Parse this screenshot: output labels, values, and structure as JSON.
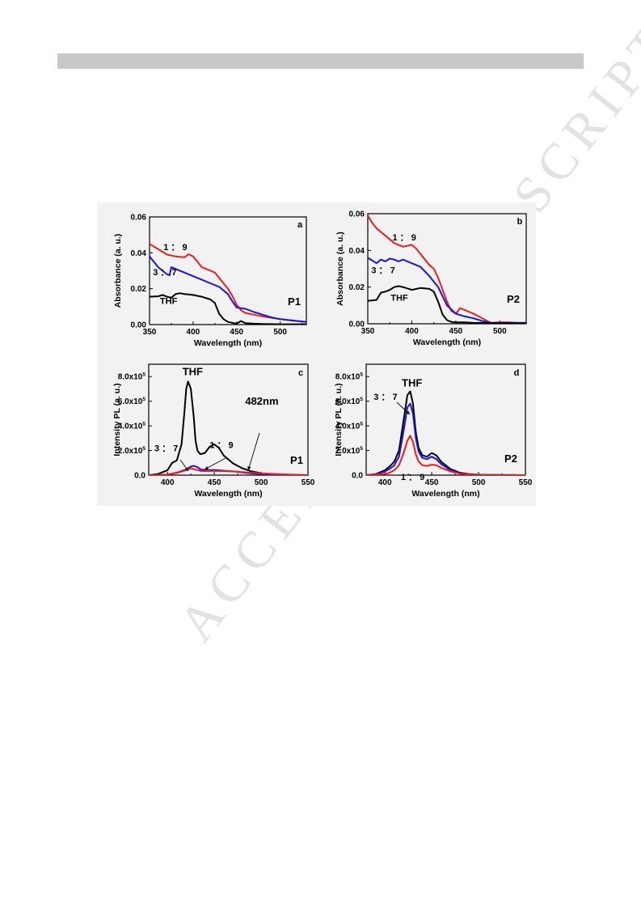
{
  "watermark": "ACCEPTED MANUSCRIPT",
  "colors": {
    "THF": "#000000",
    "3:7": "#1515e6",
    "1:9": "#ee1c1c",
    "background": "#f2f2f2"
  },
  "chart_data": [
    {
      "panel": "a",
      "type": "line",
      "sample": "P1",
      "xlabel": "Wavelength (nm)",
      "ylabel": "Absorbance (a. u.)",
      "xlim": [
        350,
        530
      ],
      "ylim": [
        0,
        0.06
      ],
      "xticks": [
        350,
        400,
        450,
        500
      ],
      "yticks": [
        0.0,
        0.02,
        0.04,
        0.06
      ],
      "ytick_labels": [
        "0.00",
        "0.02",
        "0.04",
        "0.06"
      ],
      "annotations": [
        {
          "text": "1 ： 9",
          "x": 366,
          "y": 0.0415
        },
        {
          "text": "3 ： 7",
          "x": 354,
          "y": 0.0275
        },
        {
          "text": "THF",
          "x": 362,
          "y": 0.0115
        }
      ],
      "series": [
        {
          "name": "1:9",
          "x": [
            350,
            360,
            370,
            375,
            380,
            390,
            395,
            400,
            405,
            410,
            420,
            425,
            430,
            440,
            445,
            450,
            455,
            460,
            470,
            480,
            490,
            500,
            510,
            520,
            530
          ],
          "y": [
            0.045,
            0.042,
            0.039,
            0.0385,
            0.038,
            0.0375,
            0.0392,
            0.038,
            0.035,
            0.032,
            0.03,
            0.029,
            0.026,
            0.02,
            0.016,
            0.011,
            0.008,
            0.0065,
            0.0055,
            0.0045,
            0.0038,
            0.003,
            0.0025,
            0.002,
            0.0015
          ]
        },
        {
          "name": "3:7",
          "x": [
            350,
            360,
            370,
            373,
            375,
            380,
            390,
            400,
            410,
            420,
            430,
            440,
            445,
            450,
            460,
            470,
            480,
            490,
            500,
            510,
            520,
            530
          ],
          "y": [
            0.038,
            0.032,
            0.028,
            0.0275,
            0.032,
            0.031,
            0.029,
            0.027,
            0.025,
            0.023,
            0.021,
            0.017,
            0.013,
            0.0095,
            0.0088,
            0.007,
            0.0055,
            0.004,
            0.003,
            0.0025,
            0.002,
            0.0015
          ]
        },
        {
          "name": "THF",
          "x": [
            350,
            360,
            365,
            370,
            375,
            380,
            385,
            390,
            400,
            410,
            420,
            425,
            430,
            435,
            440,
            445,
            450,
            455,
            460,
            470,
            480,
            500,
            530
          ],
          "y": [
            0.0155,
            0.0158,
            0.0165,
            0.0155,
            0.015,
            0.017,
            0.0175,
            0.017,
            0.0165,
            0.0155,
            0.014,
            0.012,
            0.006,
            0.003,
            0.0015,
            0.001,
            0.0005,
            0.002,
            0.0008,
            0.0005,
            0.0003,
            0.0002,
            0.0002
          ]
        }
      ]
    },
    {
      "panel": "b",
      "type": "line",
      "sample": "P2",
      "xlabel": "Wavelength (nm)",
      "ylabel": "Absorbance (a. u.)",
      "xlim": [
        350,
        530
      ],
      "ylim": [
        0,
        0.06
      ],
      "xticks": [
        350,
        400,
        450,
        500
      ],
      "yticks": [
        0.0,
        0.02,
        0.04,
        0.06
      ],
      "ytick_labels": [
        "0.00",
        "0.02",
        "0.04",
        "0.06"
      ],
      "annotations": [
        {
          "text": "1 ： 9",
          "x": 378,
          "y": 0.0455
        },
        {
          "text": "3 ： 7",
          "x": 354,
          "y": 0.0275
        },
        {
          "text": "THF",
          "x": 376,
          "y": 0.0125
        }
      ],
      "series": [
        {
          "name": "1:9",
          "x": [
            350,
            355,
            360,
            370,
            380,
            390,
            400,
            405,
            410,
            420,
            425,
            430,
            440,
            445,
            450,
            455,
            460,
            470,
            480,
            490,
            500,
            510,
            520,
            530
          ],
          "y": [
            0.059,
            0.055,
            0.052,
            0.048,
            0.044,
            0.042,
            0.043,
            0.041,
            0.038,
            0.032,
            0.03,
            0.025,
            0.012,
            0.007,
            0.0055,
            0.0085,
            0.0075,
            0.0055,
            0.003,
            0.0005,
            0.0008,
            0.0008,
            0.0005,
            0.0005
          ]
        },
        {
          "name": "3:7",
          "x": [
            350,
            360,
            365,
            370,
            375,
            380,
            385,
            390,
            400,
            410,
            420,
            430,
            440,
            450,
            460,
            470,
            480,
            490,
            500,
            510,
            520,
            530
          ],
          "y": [
            0.036,
            0.033,
            0.035,
            0.034,
            0.0355,
            0.035,
            0.034,
            0.035,
            0.033,
            0.031,
            0.026,
            0.02,
            0.01,
            0.0055,
            0.004,
            0.003,
            0.0015,
            0.0005,
            0.0005,
            0.0005,
            0.0005,
            0.0005
          ]
        },
        {
          "name": "THF",
          "x": [
            350,
            360,
            365,
            370,
            375,
            380,
            385,
            390,
            400,
            410,
            420,
            425,
            430,
            435,
            440,
            445,
            450,
            460,
            470,
            480,
            500,
            530
          ],
          "y": [
            0.0125,
            0.013,
            0.017,
            0.0175,
            0.0185,
            0.02,
            0.0205,
            0.02,
            0.0185,
            0.0195,
            0.019,
            0.0175,
            0.012,
            0.005,
            0.002,
            0.001,
            0.0008,
            0.0008,
            0.0005,
            0.0005,
            0.0003,
            0.0002
          ]
        }
      ]
    },
    {
      "panel": "c",
      "type": "line",
      "sample": "P1",
      "xlabel": "Wavelength (nm)",
      "ylabel": "Intensity PL (a. u.)",
      "xlim": [
        380,
        550
      ],
      "ylim": [
        0,
        900000
      ],
      "xticks": [
        400,
        450,
        500,
        550
      ],
      "yticks": [
        0,
        200000,
        400000,
        600000,
        800000
      ],
      "ytick_labels": [
        "0.0",
        "2.0x10⁵",
        "4.0x10⁵",
        "6.0x10⁵",
        "8.0x10⁵"
      ],
      "annotations": [
        {
          "text": "THF",
          "x": 416,
          "y": 810000
        },
        {
          "text": "482nm",
          "x": 483,
          "y": 570000
        },
        {
          "text": "3 ： 7",
          "x": 386,
          "y": 195000
        },
        {
          "text": "1 ： 9",
          "x": 445,
          "y": 220000
        }
      ],
      "series": [
        {
          "name": "THF",
          "x": [
            380,
            390,
            400,
            405,
            410,
            415,
            418,
            420,
            422,
            425,
            428,
            430,
            432,
            435,
            440,
            445,
            450,
            455,
            460,
            470,
            480,
            490,
            500,
            510,
            520,
            530,
            550
          ],
          "y": [
            0,
            10000,
            40000,
            100000,
            120000,
            250000,
            500000,
            700000,
            760000,
            700000,
            480000,
            280000,
            200000,
            170000,
            180000,
            230000,
            250000,
            220000,
            160000,
            95000,
            55000,
            30000,
            15000,
            8000,
            4000,
            2000,
            0
          ]
        },
        {
          "name": "3:7",
          "x": [
            380,
            400,
            410,
            420,
            425,
            428,
            432,
            435,
            440,
            450,
            460,
            470,
            480,
            490,
            500,
            520,
            550
          ],
          "y": [
            0,
            5000,
            20000,
            45000,
            70000,
            75000,
            65000,
            48000,
            40000,
            42000,
            36000,
            30000,
            22000,
            14000,
            8000,
            3000,
            0
          ]
        },
        {
          "name": "1:9",
          "x": [
            380,
            400,
            410,
            420,
            425,
            430,
            435,
            440,
            450,
            460,
            470,
            480,
            490,
            500,
            520,
            550
          ],
          "y": [
            0,
            5000,
            18000,
            40000,
            55000,
            45000,
            35000,
            33000,
            35000,
            33000,
            30000,
            25000,
            20000,
            14000,
            7000,
            0
          ]
        }
      ]
    },
    {
      "panel": "d",
      "type": "line",
      "sample": "P2",
      "xlabel": "Wavelength (nm)",
      "ylabel": "Intensity PL (a. u.)",
      "xlim": [
        380,
        550
      ],
      "ylim": [
        0,
        900000
      ],
      "xticks": [
        400,
        450,
        500,
        550
      ],
      "yticks": [
        0,
        200000,
        400000,
        600000,
        800000
      ],
      "ytick_labels": [
        "0.0",
        "2.0x10⁵",
        "4.0x10⁵",
        "6.0x10⁵",
        "8.0x10⁵"
      ],
      "annotations": [
        {
          "text": "THF",
          "x": 418,
          "y": 720000
        },
        {
          "text": "3 ： 7",
          "x": 388,
          "y": 610000
        },
        {
          "text": "1 ： 9",
          "x": 417,
          "y": -40000
        }
      ],
      "series": [
        {
          "name": "THF",
          "x": [
            380,
            390,
            400,
            405,
            410,
            415,
            420,
            424,
            427,
            430,
            433,
            436,
            440,
            445,
            450,
            455,
            460,
            470,
            480,
            490,
            500,
            520,
            550
          ],
          "y": [
            0,
            8000,
            40000,
            70000,
            110000,
            200000,
            450000,
            650000,
            680000,
            580000,
            350000,
            220000,
            160000,
            150000,
            180000,
            160000,
            110000,
            50000,
            20000,
            8000,
            3000,
            1000,
            0
          ]
        },
        {
          "name": "3:7",
          "x": [
            380,
            390,
            400,
            405,
            410,
            415,
            420,
            424,
            427,
            430,
            433,
            436,
            440,
            445,
            450,
            455,
            460,
            470,
            480,
            490,
            500,
            520,
            550
          ],
          "y": [
            0,
            6000,
            30000,
            50000,
            80000,
            150000,
            360000,
            550000,
            580000,
            500000,
            300000,
            190000,
            140000,
            130000,
            150000,
            130000,
            90000,
            40000,
            15000,
            6000,
            2000,
            800,
            0
          ]
        },
        {
          "name": "1:9",
          "x": [
            380,
            400,
            405,
            410,
            415,
            420,
            424,
            427,
            430,
            433,
            436,
            440,
            445,
            450,
            455,
            460,
            470,
            480,
            490,
            500,
            550
          ],
          "y": [
            0,
            10000,
            20000,
            40000,
            80000,
            180000,
            280000,
            320000,
            270000,
            170000,
            110000,
            80000,
            75000,
            85000,
            80000,
            60000,
            30000,
            12000,
            5000,
            2000,
            0
          ]
        }
      ]
    }
  ]
}
